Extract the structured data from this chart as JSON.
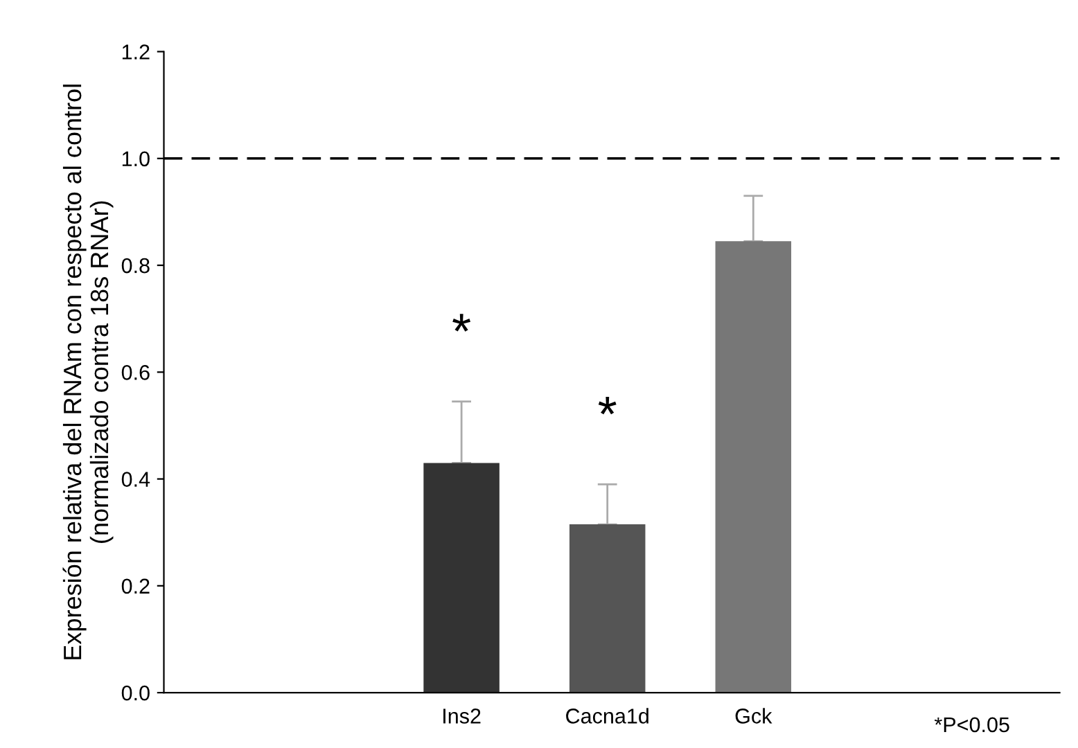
{
  "chart_data": {
    "type": "bar",
    "ylabel": "Expresión relativa del RNAm con respecto al control\n(normalizado contra 18s RNAr)",
    "categories": [
      null,
      null,
      "Ins2",
      "Cacna1d",
      "Gck"
    ],
    "values": [
      null,
      null,
      0.43,
      0.315,
      0.845
    ],
    "colors": [
      "#333333",
      "#333333",
      "#333333",
      "#555555",
      "#777777"
    ],
    "errors": [
      null,
      null,
      [
        0.43,
        0.545
      ],
      [
        0.315,
        0.39
      ],
      [
        0.845,
        0.93
      ]
    ],
    "ylim": [
      0,
      1.2
    ],
    "yticks": [
      {
        "value": 0,
        "label": "0.0"
      },
      {
        "value": 0.2,
        "label": "0.2"
      },
      {
        "value": 0.4,
        "label": "0.4"
      },
      {
        "value": 0.6,
        "label": "0.6"
      },
      {
        "value": 0.8,
        "label": "0.8"
      },
      {
        "value": 1.0,
        "label": "1.0"
      },
      {
        "value": 1.2,
        "label": "1.2"
      }
    ],
    "ref_lines": [
      {
        "axis": "y",
        "value": 1.0,
        "color": "#000000",
        "line_style": "dashed"
      }
    ],
    "annotations": [
      "*",
      "*",
      "*P<0.05"
    ],
    "grid": false,
    "legend": false
  }
}
